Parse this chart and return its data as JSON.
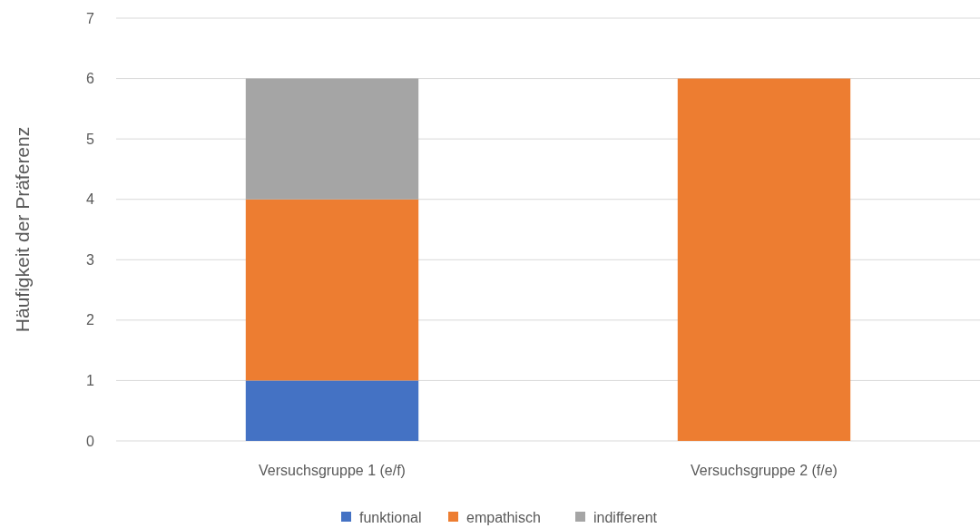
{
  "chart_data": {
    "type": "bar",
    "stacked": true,
    "ylabel": "Häufigkeit der Präferenz",
    "categories": [
      "Versuchsgruppe 1 (e/f)",
      "Versuchsgruppe 2 (f/e)"
    ],
    "series": [
      {
        "name": "funktional",
        "color": "#4472c4",
        "values": [
          1,
          0
        ]
      },
      {
        "name": "empathisch",
        "color": "#ed7d31",
        "values": [
          3,
          6
        ]
      },
      {
        "name": "indifferent",
        "color": "#a5a5a5",
        "values": [
          2,
          0
        ]
      }
    ],
    "ylim": [
      0,
      7
    ],
    "yticks": [
      0,
      1,
      2,
      3,
      4,
      5,
      6,
      7
    ],
    "grid": "y",
    "legend": "bottom"
  }
}
